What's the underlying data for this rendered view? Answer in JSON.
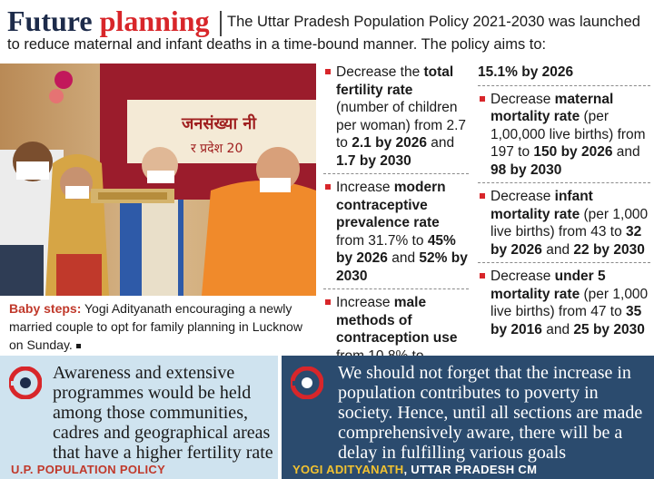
{
  "header": {
    "headline_part1": "Future",
    "headline_part2": "planning",
    "intro": "The Uttar Pradesh Population Policy 2021-2030 was launched to reduce maternal and infant deaths in a time-bound manner. The policy aims to:"
  },
  "photo": {
    "banner_line1": "जनसंख्या नी",
    "banner_line2": "र प्रदेश 20"
  },
  "caption": {
    "lead": "Baby steps:",
    "text": " Yogi Adityanath encouraging a newly married couple to opt for family planning in Lucknow on Sunday."
  },
  "goals": {
    "tfr": {
      "pre": "Decrease the",
      "bold1": "total fertility rate",
      "mid": "(number of children per woman) from 2.7 to",
      "bold2": "2.1 by 2026",
      "and": "and",
      "bold3": "1.7 by 2030"
    },
    "mcpr": {
      "pre": "Increase",
      "bold1": "modern contraceptive prevalence rate",
      "mid": "from 31.7% to",
      "bold2": "45% by 2026",
      "and": "and",
      "bold3": "52% by 2030"
    },
    "male": {
      "pre": "Increase",
      "bold1": "male methods of contraception use",
      "mid": "from 10.8% to"
    },
    "male_cont": {
      "bold1": "15.1% by 2026"
    },
    "mmr": {
      "pre": "Decrease",
      "bold1": "maternal mortality rate",
      "mid": "(per 1,00,000 live births) from 197 to",
      "bold2": "150 by 2026",
      "and": "and",
      "bold3": "98 by 2030"
    },
    "imr": {
      "pre": "Decrease",
      "bold1": "infant mortality rate",
      "mid": "(per 1,000 live births) from 43 to",
      "bold2": "32 by 2026",
      "and": "and",
      "bold3": "22 by 2030"
    },
    "u5mr": {
      "pre": "Decrease",
      "bold1": "under 5 mortality rate",
      "mid": "(per 1,000 live births) from 47 to",
      "bold2": "35 by 2016",
      "and": "and",
      "bold3": "25 by 2030"
    }
  },
  "quotes": {
    "left": {
      "text": "Awareness and extensive programmes would be held among those communities, cadres and geographical areas that have a higher fertility rate",
      "attribution": "U.P. POPULATION POLICY"
    },
    "right": {
      "text": "We should not forget that the increase in population contributes to poverty in society. Hence, until all sections are made comprehensively aware, there will be a delay in fulfilling various goals",
      "name": "YOGI ADITYANATH",
      "role": ", UTTAR PRADESH CM"
    }
  },
  "colors": {
    "accent_red": "#d8262a",
    "navy": "#1d2b4a",
    "quote_left_bg": "#cfe3ef",
    "quote_right_bg": "#2b4b6e",
    "attribution_yellow": "#f2c230"
  },
  "icons": [
    "quote-logo-icon",
    "bullet-square-icon"
  ]
}
